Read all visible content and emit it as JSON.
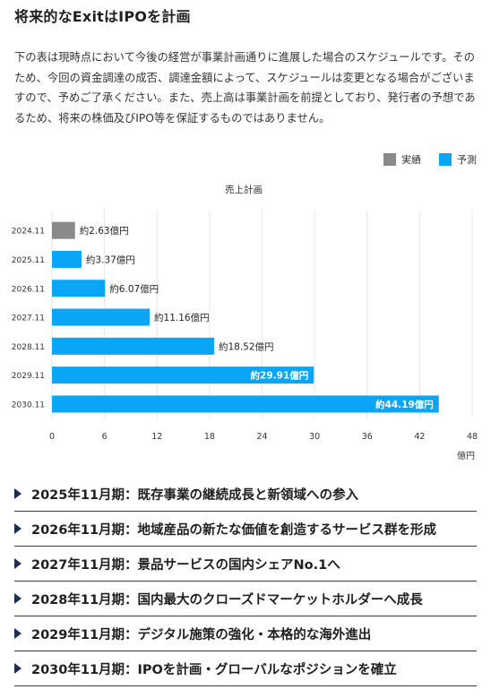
{
  "title": "将来的なExitはIPOを計画",
  "description": "下の表は現時点において今後の経営が事業計画通りに進展した場合のスケジュールです。そのため、今回の資金調達の成否、調達金額によって、スケジュールは変更となる場合がございますので、予めご了承ください。また、売上高は事業計画を前提としており、発行者の予想であるため、将来の株価及びIPO等を保証するものではありません。",
  "legend": [
    {
      "label": "実績",
      "color": "#8a8a8a"
    },
    {
      "label": "予測",
      "color": "#0aa5f5"
    }
  ],
  "chart_data": {
    "type": "bar",
    "orientation": "horizontal",
    "title": "売上計画",
    "categories": [
      "2024.11",
      "2025.11",
      "2026.11",
      "2027.11",
      "2028.11",
      "2029.11",
      "2030.11"
    ],
    "values": [
      2.63,
      3.37,
      6.07,
      11.16,
      18.52,
      29.91,
      44.19
    ],
    "labels": [
      "約2.63億円",
      "約3.37億円",
      "約6.07億円",
      "約11.16億円",
      "約18.52億円",
      "約29.91億円",
      "約44.19億円"
    ],
    "series_type": [
      "実績",
      "予測",
      "予測",
      "予測",
      "予測",
      "予測",
      "予測"
    ],
    "xlim": [
      0,
      48
    ],
    "xticks": [
      0,
      6,
      12,
      18,
      24,
      30,
      36,
      42,
      48
    ],
    "unit": "億円",
    "grid": true
  },
  "timeline": [
    "2025年11月期：既存事業の継続成長と新領域への参入",
    "2026年11月期：地域産品の新たな価値を創造するサービス群を形成",
    "2027年11月期：景品サービスの国内シェアNo.1へ",
    "2028年11月期：国内最大のクローズドマーケットホルダーへ成長",
    "2029年11月期：デジタル施策の強化・本格的な海外進出",
    "2030年11月期：IPOを計画・グローバルなポジションを確立"
  ]
}
